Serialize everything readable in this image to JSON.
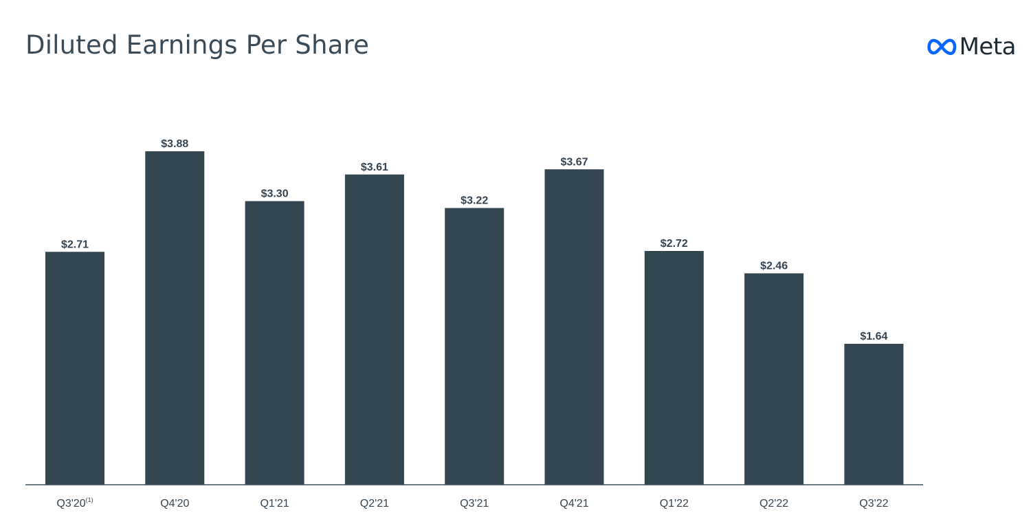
{
  "header": {
    "title": "Diluted Earnings Per Share",
    "brand_name": "Meta",
    "brand_icon": "meta-infinity-icon",
    "brand_color": "#0866ff"
  },
  "chart_data": {
    "type": "bar",
    "title": "Diluted Earnings Per Share",
    "xlabel": "",
    "ylabel": "",
    "categories": [
      "Q3'20",
      "Q4'20",
      "Q1'21",
      "Q2'21",
      "Q3'21",
      "Q4'21",
      "Q1'22",
      "Q2'22",
      "Q3'22"
    ],
    "category_notes": [
      "(1)",
      "",
      "",
      "",
      "",
      "",
      "",
      "",
      ""
    ],
    "values": [
      2.71,
      3.88,
      3.3,
      3.61,
      3.22,
      3.67,
      2.72,
      2.46,
      1.64
    ],
    "value_labels": [
      "$2.71",
      "$3.88",
      "$3.30",
      "$3.61",
      "$3.22",
      "$3.67",
      "$2.72",
      "$2.46",
      "$1.64"
    ],
    "ylim": [
      0,
      3.88
    ],
    "grid": false,
    "legend": "none",
    "bar_color": "#34464f",
    "axis_color": "#3f4e59"
  }
}
